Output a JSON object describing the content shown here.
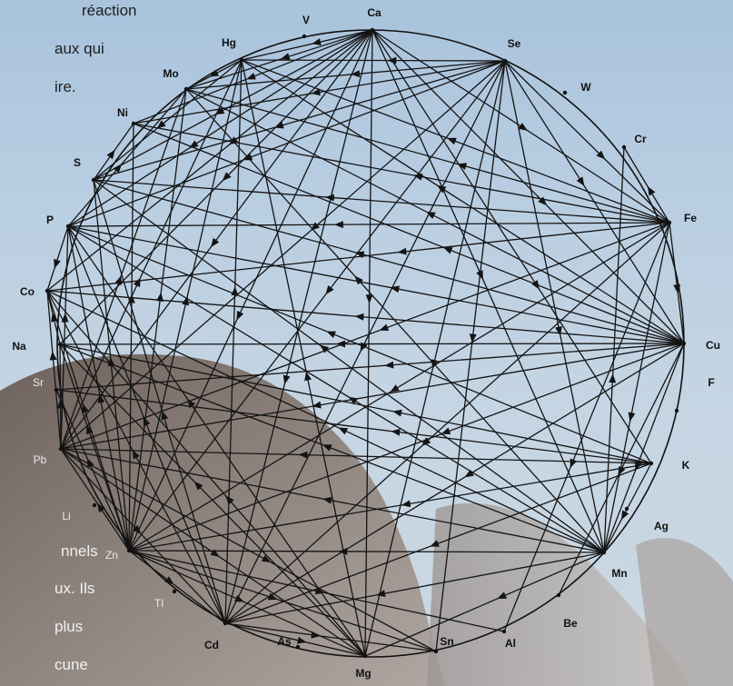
{
  "text_fragments": {
    "top_1": "réaction",
    "top_2": "aux qui",
    "top_3": "ire.",
    "bottom_1": "nnels",
    "bottom_2": "ux. Ils",
    "bottom_3": "plus",
    "bottom_4": "cune"
  },
  "elements": [
    "Ca",
    "Se",
    "W",
    "Cr",
    "Fe",
    "Cu",
    "F",
    "K",
    "Ag",
    "Mn",
    "Be",
    "Al",
    "Sn",
    "Mg",
    "As",
    "Cd",
    "Tl",
    "Zn",
    "Li",
    "Pb",
    "Sr",
    "Na",
    "Co",
    "P",
    "S",
    "Ni",
    "Mo",
    "Hg",
    "V"
  ],
  "interactions": [
    [
      "Ca",
      "Hg"
    ],
    [
      "Ca",
      "Mo"
    ],
    [
      "Ca",
      "Ni"
    ],
    [
      "Ca",
      "S"
    ],
    [
      "Ca",
      "P"
    ],
    [
      "Ca",
      "Co"
    ],
    [
      "Ca",
      "Na"
    ],
    [
      "Ca",
      "Pb"
    ],
    [
      "Ca",
      "Zn"
    ],
    [
      "Ca",
      "Cd"
    ],
    [
      "Ca",
      "Mg"
    ],
    [
      "Ca",
      "Mn"
    ],
    [
      "Ca",
      "Fe"
    ],
    [
      "Ca",
      "Cu"
    ],
    [
      "Ca",
      "K"
    ],
    [
      "Se",
      "Hg"
    ],
    [
      "Se",
      "Mo"
    ],
    [
      "Se",
      "Ni"
    ],
    [
      "Se",
      "S"
    ],
    [
      "Se",
      "P"
    ],
    [
      "Se",
      "Pb"
    ],
    [
      "Se",
      "Zn"
    ],
    [
      "Se",
      "Cd"
    ],
    [
      "Se",
      "Mn"
    ],
    [
      "Se",
      "Fe"
    ],
    [
      "Se",
      "Cu"
    ],
    [
      "Se",
      "Sn"
    ],
    [
      "Se",
      "Mg"
    ],
    [
      "Fe",
      "P"
    ],
    [
      "Fe",
      "S"
    ],
    [
      "Fe",
      "Co"
    ],
    [
      "Fe",
      "Pb"
    ],
    [
      "Fe",
      "Zn"
    ],
    [
      "Fe",
      "Cd"
    ],
    [
      "Fe",
      "Mn"
    ],
    [
      "Fe",
      "Mo"
    ],
    [
      "Fe",
      "Ni"
    ],
    [
      "Fe",
      "Hg"
    ],
    [
      "Fe",
      "Cu"
    ],
    [
      "Fe",
      "Al"
    ],
    [
      "Fe",
      "Cr"
    ],
    [
      "Cu",
      "P"
    ],
    [
      "Cu",
      "Co"
    ],
    [
      "Cu",
      "Na"
    ],
    [
      "Cu",
      "Pb"
    ],
    [
      "Cu",
      "Zn"
    ],
    [
      "Cu",
      "Cd"
    ],
    [
      "Cu",
      "Mo"
    ],
    [
      "Cu",
      "S"
    ],
    [
      "Cu",
      "Mn"
    ],
    [
      "Cu",
      "Ni"
    ],
    [
      "Cu",
      "Sr"
    ],
    [
      "Cu",
      "Be"
    ],
    [
      "Cu",
      "Hg"
    ],
    [
      "K",
      "Pb"
    ],
    [
      "K",
      "Na"
    ],
    [
      "K",
      "Zn"
    ],
    [
      "K",
      "Cd"
    ],
    [
      "K",
      "P"
    ],
    [
      "K",
      "Mn"
    ],
    [
      "K",
      "Sr"
    ],
    [
      "Mn",
      "P"
    ],
    [
      "Mn",
      "Pb"
    ],
    [
      "Mn",
      "Zn"
    ],
    [
      "Mn",
      "Cd"
    ],
    [
      "Mn",
      "Mg"
    ],
    [
      "Mn",
      "Co"
    ],
    [
      "Mn",
      "Na"
    ],
    [
      "Mn",
      "S"
    ],
    [
      "Mn",
      "Mo"
    ],
    [
      "Mn",
      "Cr"
    ],
    [
      "Zn",
      "P"
    ],
    [
      "Zn",
      "S"
    ],
    [
      "Zn",
      "Co"
    ],
    [
      "Zn",
      "Na"
    ],
    [
      "Zn",
      "Cd"
    ],
    [
      "Zn",
      "Mg"
    ],
    [
      "Zn",
      "Hg"
    ],
    [
      "Zn",
      "Mo"
    ],
    [
      "Zn",
      "Ni"
    ],
    [
      "Zn",
      "Pb"
    ],
    [
      "Zn",
      "Sn"
    ],
    [
      "Zn",
      "Al"
    ],
    [
      "Zn",
      "Sr"
    ],
    [
      "Pb",
      "P"
    ],
    [
      "Pb",
      "Na"
    ],
    [
      "Pb",
      "Cd"
    ],
    [
      "Pb",
      "Mg"
    ],
    [
      "Pb",
      "Sn"
    ],
    [
      "Pb",
      "Co"
    ],
    [
      "Pb",
      "Hg"
    ],
    [
      "Pb",
      "Mo"
    ],
    [
      "Cd",
      "P"
    ],
    [
      "Cd",
      "Mg"
    ],
    [
      "Cd",
      "Hg"
    ],
    [
      "Cd",
      "Sn"
    ],
    [
      "Cd",
      "S"
    ],
    [
      "Cd",
      "Co"
    ],
    [
      "Mg",
      "Na"
    ],
    [
      "Mg",
      "P"
    ],
    [
      "Mg",
      "Co"
    ],
    [
      "Mg",
      "Hg"
    ],
    [
      "Hg",
      "Mo"
    ],
    [
      "Hg",
      "S"
    ],
    [
      "P",
      "Co"
    ],
    [
      "P",
      "Mo"
    ],
    [
      "S",
      "Ni"
    ],
    [
      "Na",
      "Co"
    ]
  ],
  "colors": {
    "line": "#141414",
    "circle": "#111111",
    "hair": "#5a4d46"
  }
}
